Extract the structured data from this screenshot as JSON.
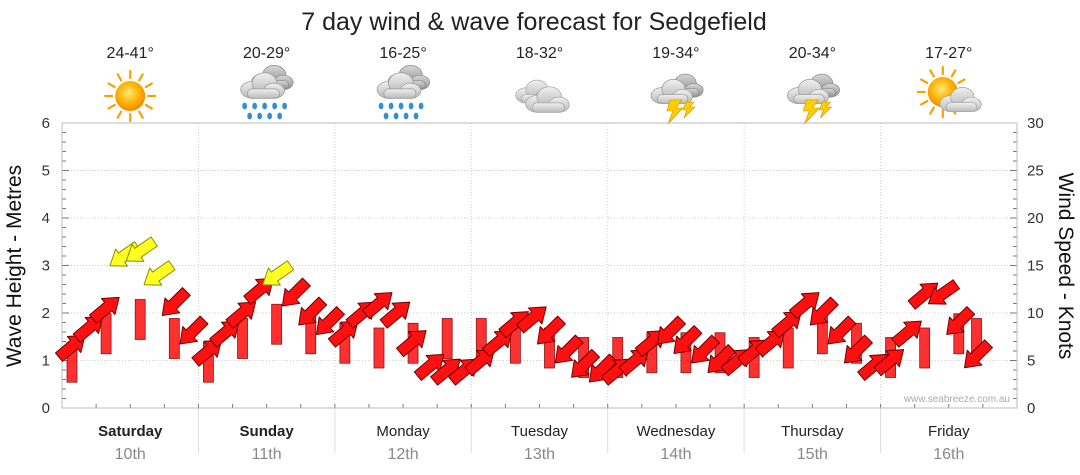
{
  "chart_data": {
    "type": "scatter",
    "title": "7 day wind & wave forecast for Sedgefield",
    "ylabel_left": "Wave Height - Metres",
    "ylabel_right": "Wind Speed - Knots",
    "ylim_left": [
      0,
      6
    ],
    "ylim_right": [
      0,
      30
    ],
    "yticks_left": [
      "0",
      "1",
      "2",
      "3",
      "4",
      "5",
      "6"
    ],
    "yticks_right": [
      "0",
      "5",
      "10",
      "15",
      "20",
      "25",
      "30"
    ],
    "grid": true,
    "days": [
      {
        "name": "Saturday",
        "date": "10th",
        "temp": "24-41°",
        "weather": "sunny-icon",
        "bold": true
      },
      {
        "name": "Sunday",
        "date": "11th",
        "temp": "20-29°",
        "weather": "rain-icon",
        "bold": true
      },
      {
        "name": "Monday",
        "date": "12th",
        "temp": "16-25°",
        "weather": "rain-icon",
        "bold": false
      },
      {
        "name": "Tuesday",
        "date": "13th",
        "temp": "18-32°",
        "weather": "cloudy-icon",
        "bold": false
      },
      {
        "name": "Wednesday",
        "date": "14th",
        "temp": "19-34°",
        "weather": "storm-icon",
        "bold": false
      },
      {
        "name": "Thursday",
        "date": "15th",
        "temp": "20-34°",
        "weather": "storm-icon",
        "bold": false
      },
      {
        "name": "Friday",
        "date": "16th",
        "temp": "17-27°",
        "weather": "partly-cloudy-icon",
        "bold": false
      }
    ],
    "wind_series": {
      "name": "Wind",
      "x_day": [
        0.0,
        0.13,
        0.25,
        0.38,
        0.5,
        0.63,
        0.75,
        0.88,
        1.0,
        1.13,
        1.25,
        1.38,
        1.5,
        1.63,
        1.75,
        1.88,
        2.0,
        2.13,
        2.25,
        2.38,
        2.5,
        2.63,
        2.75,
        2.88,
        3.0,
        3.13,
        3.25,
        3.38,
        3.5,
        3.63,
        3.75,
        3.88,
        4.0,
        4.13,
        4.25,
        4.38,
        4.5,
        4.63,
        4.75,
        4.88,
        5.0,
        5.13,
        5.25,
        5.38,
        5.5,
        5.63,
        5.75,
        5.88,
        6.0,
        6.13,
        6.25,
        6.38,
        6.5,
        6.63
      ],
      "knots": [
        6.5,
        8.5,
        10.5,
        16,
        16.5,
        14,
        11,
        8,
        6,
        8,
        10,
        12.5,
        14,
        12,
        10,
        9,
        8,
        10,
        11,
        10,
        7,
        4.5,
        4,
        4,
        5,
        7,
        9,
        9.5,
        8,
        6,
        4.5,
        4,
        4,
        5,
        7,
        8,
        7,
        6,
        5,
        5,
        6,
        7,
        9,
        11,
        10,
        8,
        6,
        4.5,
        5,
        8,
        12,
        12,
        9,
        5.5
      ],
      "direction_deg": [
        320,
        320,
        320,
        145,
        145,
        145,
        135,
        135,
        320,
        320,
        320,
        320,
        145,
        135,
        135,
        135,
        320,
        320,
        320,
        320,
        320,
        320,
        320,
        320,
        320,
        320,
        320,
        320,
        135,
        135,
        135,
        135,
        320,
        320,
        320,
        135,
        135,
        135,
        135,
        320,
        320,
        320,
        320,
        320,
        135,
        135,
        135,
        320,
        320,
        320,
        320,
        145,
        135,
        135
      ]
    },
    "wave_series": {
      "name": "Wave",
      "x_day": [
        0.0,
        0.25,
        0.5,
        0.75,
        1.0,
        1.25,
        1.5,
        1.75,
        2.0,
        2.25,
        2.5,
        2.75,
        3.0,
        3.25,
        3.5,
        3.75,
        4.0,
        4.25,
        4.5,
        4.75,
        5.0,
        5.25,
        5.5,
        5.75,
        6.0,
        6.25,
        6.5,
        6.63
      ],
      "metres": [
        1.3,
        1.9,
        2.2,
        1.8,
        1.3,
        1.8,
        2.1,
        1.9,
        1.7,
        1.6,
        1.7,
        1.8,
        1.8,
        1.7,
        1.6,
        1.4,
        1.4,
        1.5,
        1.5,
        1.5,
        1.4,
        1.6,
        1.9,
        1.7,
        1.4,
        1.6,
        1.9,
        1.8
      ]
    },
    "credit": "www.seabreeze.com.au"
  }
}
